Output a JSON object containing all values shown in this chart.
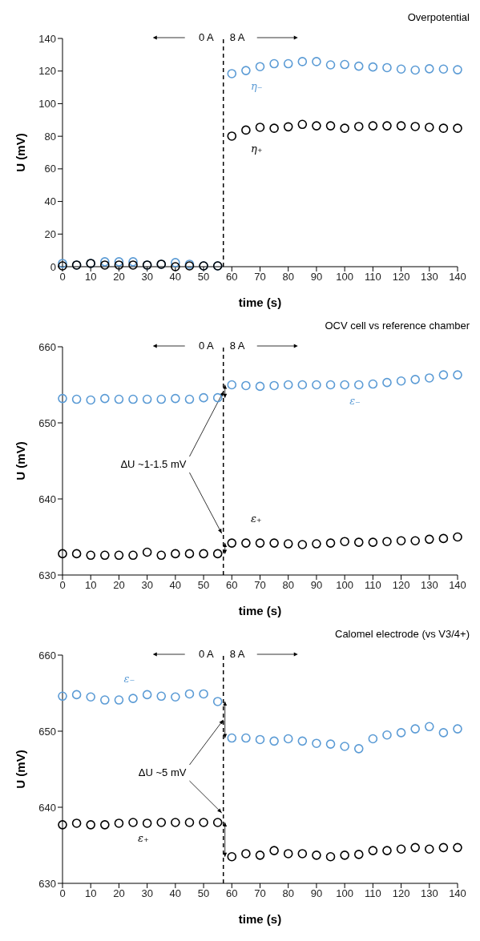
{
  "chart_data": [
    {
      "type": "scatter",
      "title": "Overpotential",
      "xlabel": "time (s)",
      "ylabel": "U (mV)",
      "annotations": [
        "0 A",
        "8 A"
      ],
      "x": [
        0,
        5,
        10,
        15,
        20,
        25,
        30,
        35,
        40,
        45,
        50,
        55,
        60,
        65,
        70,
        75,
        80,
        85,
        90,
        95,
        100,
        105,
        110,
        115,
        120,
        125,
        130,
        135,
        140
      ],
      "series": [
        {
          "name": "η₋",
          "color": "#5b9bd5",
          "values": [
            2,
            1,
            2,
            3,
            3,
            3,
            1,
            1.5,
            2.5,
            1.5,
            0.5,
            0.5,
            118.4,
            120.3,
            122.7,
            124.5,
            124.5,
            125.8,
            125.8,
            123.8,
            124,
            123,
            122.5,
            122.1,
            121.2,
            120.6,
            121.4,
            121.2,
            120.8
          ]
        },
        {
          "name": "η₊",
          "color": "#000000",
          "values": [
            0.5,
            1,
            2,
            1,
            1,
            1,
            1,
            1.5,
            0,
            0.5,
            0.5,
            0.5,
            80.1,
            83.8,
            85.5,
            84.9,
            85.8,
            87.3,
            86.4,
            86.4,
            84.9,
            86,
            86.4,
            86.4,
            86.4,
            86,
            85.5,
            84.9,
            84.9
          ]
        }
      ],
      "xlim": [
        0,
        140
      ],
      "xticks": [
        0,
        10,
        20,
        30,
        40,
        50,
        60,
        70,
        80,
        90,
        100,
        110,
        120,
        130,
        140
      ],
      "ylim": [
        0,
        140
      ],
      "yticks": [
        0,
        20,
        40,
        60,
        80,
        100,
        120,
        140
      ],
      "ref_lines": [
        {
          "axis": "x",
          "value": 57,
          "label": null,
          "color": "#000000",
          "line_style": "dashed"
        }
      ],
      "grid": false,
      "legend": false,
      "marker": "circle"
    },
    {
      "type": "scatter",
      "title": "OCV cell vs reference chamber",
      "xlabel": "time (s)",
      "ylabel": "U (mV)",
      "annotations": [
        "0 A",
        "8 A",
        {
          "text": "ΔU ~1-1.5 mV",
          "x": 57,
          "y": 654.1
        }
      ],
      "x": [
        0,
        5,
        10,
        15,
        20,
        25,
        30,
        35,
        40,
        45,
        50,
        55,
        60,
        65,
        70,
        75,
        80,
        85,
        90,
        95,
        100,
        105,
        110,
        115,
        120,
        125,
        130,
        135,
        140
      ],
      "series": [
        {
          "name": "ε₋",
          "color": "#5b9bd5",
          "values": [
            653.2,
            653.1,
            653.0,
            653.2,
            653.1,
            653.1,
            653.1,
            653.1,
            653.2,
            653.1,
            653.3,
            653.3,
            655.0,
            654.9,
            654.8,
            654.9,
            655.0,
            655.0,
            655.0,
            655.0,
            655.0,
            655.0,
            655.1,
            655.3,
            655.5,
            655.7,
            655.9,
            656.3,
            656.3
          ]
        },
        {
          "name": "ε₊",
          "color": "#000000",
          "values": [
            632.8,
            632.8,
            632.6,
            632.6,
            632.6,
            632.6,
            633.0,
            632.6,
            632.8,
            632.8,
            632.8,
            632.8,
            634.2,
            634.2,
            634.2,
            634.2,
            634.1,
            634.0,
            634.1,
            634.2,
            634.4,
            634.3,
            634.3,
            634.4,
            634.5,
            634.5,
            634.7,
            634.8,
            635.0
          ]
        }
      ],
      "xlim": [
        0,
        140
      ],
      "xticks": [
        0,
        10,
        20,
        30,
        40,
        50,
        60,
        70,
        80,
        90,
        100,
        110,
        120,
        130,
        140
      ],
      "ylim": [
        630,
        660
      ],
      "yticks": [
        630,
        640,
        650,
        660
      ],
      "ref_lines": [
        {
          "axis": "x",
          "value": 57,
          "label": null,
          "color": "#000000",
          "line_style": "dashed"
        }
      ],
      "grid": false,
      "legend": false,
      "marker": "circle"
    },
    {
      "type": "scatter",
      "title": "Calomel electrode (vs V3/4+)",
      "xlabel": "time (s)",
      "ylabel": "U (mV)",
      "annotations": [
        "0 A",
        "8 A",
        {
          "text": "ΔU ~5 mV",
          "x": 57,
          "y": 651.5
        }
      ],
      "x": [
        0,
        5,
        10,
        15,
        20,
        25,
        30,
        35,
        40,
        45,
        50,
        55,
        60,
        65,
        70,
        75,
        80,
        85,
        90,
        95,
        100,
        105,
        110,
        115,
        120,
        125,
        130,
        135,
        140
      ],
      "series": [
        {
          "name": "ε₋",
          "color": "#5b9bd5",
          "values": [
            654.6,
            654.8,
            654.5,
            654.1,
            654.1,
            654.3,
            654.8,
            654.6,
            654.5,
            654.9,
            654.9,
            653.9,
            649.1,
            649.1,
            648.9,
            648.7,
            649.0,
            648.7,
            648.4,
            648.3,
            648.0,
            647.7,
            649.0,
            649.5,
            649.8,
            650.3,
            650.6,
            649.8,
            650.3
          ]
        },
        {
          "name": "ε₊",
          "color": "#000000",
          "values": [
            637.7,
            637.9,
            637.7,
            637.7,
            637.9,
            638.0,
            637.9,
            638.0,
            638.0,
            638.0,
            638.0,
            638.0,
            633.5,
            633.9,
            633.7,
            634.3,
            633.9,
            633.9,
            633.7,
            633.5,
            633.7,
            633.8,
            634.3,
            634.3,
            634.5,
            634.7,
            634.5,
            634.7,
            634.7
          ]
        }
      ],
      "xlim": [
        0,
        140
      ],
      "xticks": [
        0,
        10,
        20,
        30,
        40,
        50,
        60,
        70,
        80,
        90,
        100,
        110,
        120,
        130,
        140
      ],
      "ylim": [
        630,
        660
      ],
      "yticks": [
        630,
        640,
        650,
        660
      ],
      "ref_lines": [
        {
          "axis": "x",
          "value": 57,
          "label": null,
          "color": "#000000",
          "line_style": "dashed"
        }
      ],
      "grid": false,
      "legend": false,
      "marker": "circle"
    }
  ]
}
